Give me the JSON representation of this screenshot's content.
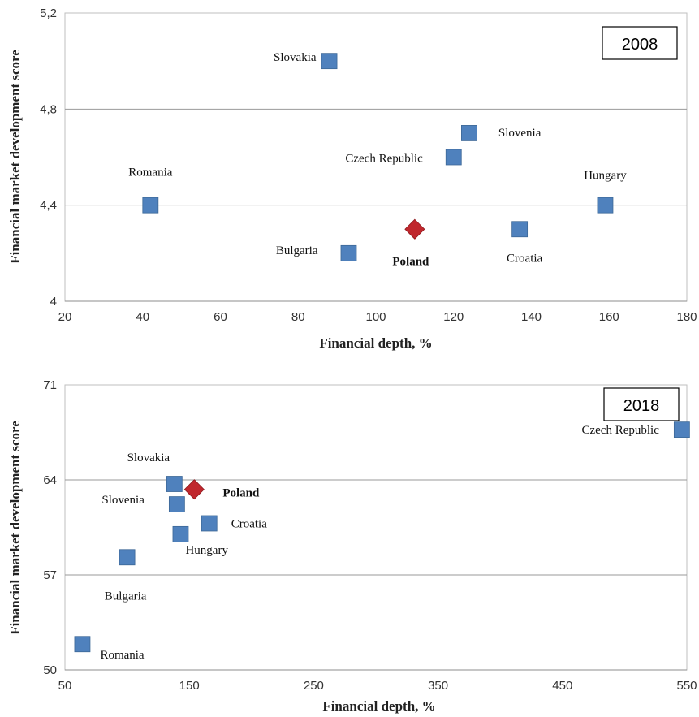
{
  "chart_data": [
    {
      "type": "scatter",
      "year_label": "2008",
      "xlabel": "Financial depth, %",
      "ylabel": "Financial market development score",
      "xlim": [
        20,
        180
      ],
      "ylim": [
        4.0,
        5.2
      ],
      "x_ticks": [
        {
          "value": 20,
          "label": "20"
        },
        {
          "value": 40,
          "label": "40"
        },
        {
          "value": 60,
          "label": "60"
        },
        {
          "value": 80,
          "label": "80"
        },
        {
          "value": 100,
          "label": "100"
        },
        {
          "value": 120,
          "label": "120"
        },
        {
          "value": 140,
          "label": "140"
        },
        {
          "value": 160,
          "label": "160"
        },
        {
          "value": 180,
          "label": "180"
        }
      ],
      "y_ticks": [
        {
          "value": 4.0,
          "label": "4"
        },
        {
          "value": 4.4,
          "label": "4,4"
        },
        {
          "value": 4.8,
          "label": "4,8"
        },
        {
          "value": 5.2,
          "label": "5,2"
        }
      ],
      "grid": "horizontal",
      "colors": {
        "country": "#4F81BD",
        "highlight": "#C0272D",
        "grid": "#9a9a9a"
      },
      "points": [
        {
          "name": "Slovakia",
          "x": 88,
          "y": 5.0,
          "highlight": false,
          "lx": -16,
          "ly": 0,
          "anchor": "end"
        },
        {
          "name": "Slovenia",
          "x": 124,
          "y": 4.7,
          "highlight": false,
          "lx": 36,
          "ly": 4,
          "anchor": "start"
        },
        {
          "name": "Czech Republic",
          "x": 120,
          "y": 4.6,
          "highlight": false,
          "lx": -38,
          "ly": 6,
          "anchor": "end"
        },
        {
          "name": "Romania",
          "x": 42,
          "y": 4.4,
          "highlight": false,
          "lx": 0,
          "ly": -36,
          "anchor": "middle"
        },
        {
          "name": "Hungary",
          "x": 159,
          "y": 4.4,
          "highlight": false,
          "lx": 0,
          "ly": -32,
          "anchor": "middle"
        },
        {
          "name": "Croatia",
          "x": 137,
          "y": 4.3,
          "highlight": false,
          "lx": 6,
          "ly": 40,
          "anchor": "middle"
        },
        {
          "name": "Bulgaria",
          "x": 93,
          "y": 4.2,
          "highlight": false,
          "lx": -38,
          "ly": 1,
          "anchor": "end"
        },
        {
          "name": "Poland",
          "x": 110,
          "y": 4.3,
          "highlight": true,
          "lx": -5,
          "ly": 44,
          "anchor": "middle"
        }
      ]
    },
    {
      "type": "scatter",
      "year_label": "2018",
      "xlabel": "Financial depth, %",
      "ylabel": "Financial market development score",
      "xlim": [
        50,
        550
      ],
      "ylim": [
        50,
        71
      ],
      "x_ticks": [
        {
          "value": 50,
          "label": "50"
        },
        {
          "value": 150,
          "label": "150"
        },
        {
          "value": 250,
          "label": "250"
        },
        {
          "value": 350,
          "label": "350"
        },
        {
          "value": 450,
          "label": "450"
        },
        {
          "value": 550,
          "label": "550"
        }
      ],
      "y_ticks": [
        {
          "value": 50,
          "label": "50"
        },
        {
          "value": 57,
          "label": "57"
        },
        {
          "value": 64,
          "label": "64"
        },
        {
          "value": 71,
          "label": "71"
        }
      ],
      "grid": "horizontal",
      "colors": {
        "country": "#4F81BD",
        "highlight": "#C0272D",
        "grid": "#9a9a9a"
      },
      "points": [
        {
          "name": "Czech Republic",
          "x": 546,
          "y": 67.7,
          "highlight": false,
          "lx": -28,
          "ly": 5,
          "anchor": "end"
        },
        {
          "name": "Slovakia",
          "x": 138,
          "y": 63.7,
          "highlight": false,
          "lx": -32,
          "ly": -28,
          "anchor": "middle"
        },
        {
          "name": "Poland",
          "x": 154,
          "y": 63.3,
          "highlight": true,
          "lx": 35,
          "ly": 9,
          "anchor": "start"
        },
        {
          "name": "Slovenia",
          "x": 140,
          "y": 62.2,
          "highlight": false,
          "lx": -40,
          "ly": -1,
          "anchor": "end"
        },
        {
          "name": "Croatia",
          "x": 166,
          "y": 60.8,
          "highlight": false,
          "lx": 27,
          "ly": 5,
          "anchor": "start"
        },
        {
          "name": "Hungary",
          "x": 143,
          "y": 60.0,
          "highlight": false,
          "lx": 6,
          "ly": 24,
          "anchor": "start"
        },
        {
          "name": "Bulgaria",
          "x": 100,
          "y": 58.3,
          "highlight": false,
          "lx": -2,
          "ly": 52,
          "anchor": "middle"
        },
        {
          "name": "Romania",
          "x": 64,
          "y": 51.9,
          "highlight": false,
          "lx": 22,
          "ly": 18,
          "anchor": "start"
        }
      ]
    }
  ]
}
